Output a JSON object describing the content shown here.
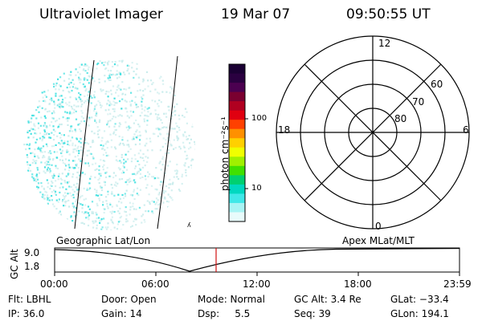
{
  "header": {
    "instrument": "Ultraviolet Imager",
    "date": "19 Mar 07",
    "time": "09:50:55 UT"
  },
  "colorbar": {
    "label": "photon cm⁻²s⁻¹",
    "ticks": [
      "100",
      "10"
    ],
    "colors": [
      "#1a0033",
      "#2a0040",
      "#4b0050",
      "#7a0030",
      "#b00020",
      "#e00010",
      "#ff4000",
      "#ff9000",
      "#ffd000",
      "#f0ff00",
      "#a0f000",
      "#40e000",
      "#00d070",
      "#00d8c0",
      "#40e8e8",
      "#a8f4f4",
      "#e8fbfb"
    ]
  },
  "polar_grid": {
    "mlt_labels": {
      "top": "12",
      "left": "18",
      "right": "6",
      "bottom": "0"
    },
    "lat_labels": [
      "60",
      "70",
      "80"
    ]
  },
  "geo_labels": {
    "left": "Geographic Lat/Lon",
    "right": "Apex MLat/MLT"
  },
  "timeline": {
    "axis_label": "GC Alt",
    "y_ticks": [
      "9.0",
      "1.8"
    ],
    "x_ticks": [
      "00:00",
      "06:00",
      "12:00",
      "18:00",
      "23:59"
    ]
  },
  "info": {
    "flt": "Flt: LBHL",
    "ip": "IP: 36.0",
    "door": "Door: Open",
    "gain": "Gain: 14",
    "mode": "Mode: Normal",
    "dsp": "Dsp:     5.5",
    "gc_alt": "GC Alt: 3.4 Re",
    "seq": "Seq: 39",
    "glat": "GLat: −33.4",
    "glon": "GLon: 194.1"
  },
  "colors": {
    "marker": "#d01010",
    "dot_bright": "#40e0e0",
    "dot_pale": "#c8ecec"
  }
}
